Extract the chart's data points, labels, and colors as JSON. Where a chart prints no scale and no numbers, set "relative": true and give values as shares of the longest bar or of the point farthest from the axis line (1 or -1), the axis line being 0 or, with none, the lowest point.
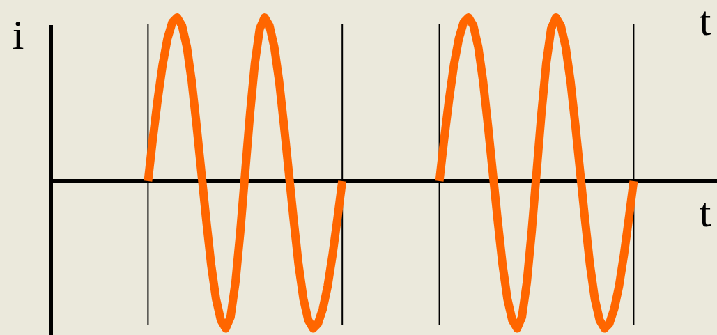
{
  "chart_data": {
    "type": "line",
    "relative": true,
    "ylabel": "i",
    "xlabel": "t",
    "annotations": [
      "t"
    ],
    "categories": [
      null,
      null,
      null,
      null,
      null,
      null,
      null,
      null,
      null,
      null,
      null,
      null,
      null,
      null,
      null,
      null,
      null,
      null,
      null,
      null,
      null,
      null,
      null,
      null,
      null,
      null,
      null,
      null,
      null,
      null,
      null,
      null,
      null,
      null,
      null,
      null,
      null,
      null,
      null,
      null,
      null,
      null,
      null,
      null,
      null,
      null,
      null,
      null,
      null,
      null,
      null,
      null,
      null,
      null,
      null,
      null,
      null,
      null,
      null,
      null,
      null,
      null,
      null,
      null,
      null,
      null,
      null,
      null,
      null,
      null,
      null,
      null,
      null,
      null,
      null,
      null,
      null,
      null,
      null,
      null,
      null,
      null,
      null,
      null,
      null,
      null,
      null,
      null,
      null,
      null,
      null,
      null,
      null,
      null,
      null,
      null,
      null,
      null,
      null,
      null,
      null,
      null,
      null,
      null,
      null,
      null,
      null,
      null,
      null,
      null,
      null,
      null,
      null,
      null,
      null,
      null,
      null,
      null,
      null,
      null,
      null,
      null,
      null,
      null,
      null,
      null,
      null,
      null,
      null,
      null,
      null,
      null,
      null,
      null
    ],
    "series": [
      {
        "color": "#ff6600",
        "values": [
          null,
          null,
          null,
          null,
          null,
          null,
          null,
          null,
          null,
          null,
          null,
          null,
          null,
          null,
          null,
          null,
          null,
          null,
          null,
          null,
          0,
          0.26,
          0.5,
          0.71,
          0.87,
          0.97,
          1,
          0.95,
          0.82,
          0.61,
          0.34,
          0.05,
          -0.24,
          -0.51,
          -0.72,
          -0.85,
          -0.9,
          -0.83,
          -0.62,
          -0.31,
          0.05,
          0.41,
          0.72,
          0.93,
          1,
          0.95,
          0.82,
          0.61,
          0.34,
          0.05,
          -0.24,
          -0.51,
          -0.72,
          -0.85,
          -0.9,
          -0.87,
          -0.78,
          -0.64,
          -0.45,
          -0.23,
          0,
          null,
          null,
          null,
          null,
          null,
          null,
          null,
          null,
          null,
          null,
          null,
          null,
          null,
          null,
          null,
          null,
          null,
          null,
          null,
          null,
          null,
          null,
          null,
          null,
          null,
          null,
          null,
          null,
          null,
          null,
          null,
          null,
          null,
          null,
          null,
          null,
          null,
          null,
          null,
          null,
          null,
          null,
          null,
          null,
          null,
          null,
          null,
          null,
          null,
          null,
          null,
          null,
          null,
          null,
          null,
          null,
          null,
          null,
          null,
          null,
          null,
          null,
          null,
          null,
          null,
          null,
          null,
          null,
          null,
          null,
          null,
          null,
          null
        ]
      },
      {
        "color": "#ff6600",
        "values": [
          null,
          null,
          null,
          null,
          null,
          null,
          null,
          null,
          null,
          null,
          null,
          null,
          null,
          null,
          null,
          null,
          null,
          null,
          null,
          null,
          null,
          null,
          null,
          null,
          null,
          null,
          null,
          null,
          null,
          null,
          null,
          null,
          null,
          null,
          null,
          null,
          null,
          null,
          null,
          null,
          null,
          null,
          null,
          null,
          null,
          null,
          null,
          null,
          null,
          null,
          null,
          null,
          null,
          null,
          null,
          null,
          null,
          null,
          null,
          null,
          null,
          null,
          null,
          null,
          null,
          null,
          null,
          null,
          null,
          null,
          null,
          null,
          null,
          null,
          null,
          null,
          null,
          null,
          null,
          null,
          0,
          0.26,
          0.5,
          0.71,
          0.87,
          0.97,
          1,
          0.95,
          0.82,
          0.61,
          0.34,
          0.05,
          -0.24,
          -0.51,
          -0.72,
          -0.85,
          -0.9,
          -0.83,
          -0.62,
          -0.31,
          0.05,
          0.41,
          0.72,
          0.93,
          1,
          0.95,
          0.82,
          0.61,
          0.34,
          0.05,
          -0.24,
          -0.51,
          -0.72,
          -0.85,
          -0.9,
          -0.87,
          -0.78,
          -0.64,
          -0.45,
          -0.23,
          0,
          null,
          null,
          null,
          null,
          null,
          null,
          null,
          null,
          null,
          null,
          null,
          null,
          null
        ]
      }
    ]
  }
}
